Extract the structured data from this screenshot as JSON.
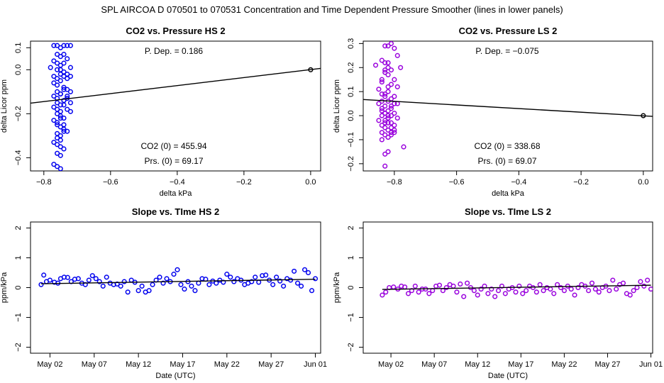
{
  "header": {
    "title": "SPL   AIRCOA D   070501 to 070531   Concentration and Time Dependent Pressure Smoother (lines in lower panels)"
  },
  "colors": {
    "hs": "#0000ee",
    "ls": "#9900dd",
    "line": "#000000"
  },
  "chart_data": [
    {
      "type": "scatter",
      "title": "CO2 vs. Pressure HS 2",
      "xlabel": "delta kPa",
      "ylabel": "delta Licor ppm",
      "xlim": [
        -0.84,
        0.03
      ],
      "ylim": [
        -0.46,
        0.13
      ],
      "xticks": [
        -0.8,
        -0.6,
        -0.4,
        -0.2,
        0.0
      ],
      "xtick_labels": [
        "−0.8",
        "−0.6",
        "−0.4",
        "−0.2",
        "0.0"
      ],
      "yticks": [
        -0.4,
        -0.2,
        0.0,
        0.1
      ],
      "ytick_labels": [
        "−0.4",
        "−0.2",
        "0.0",
        "0.1"
      ],
      "fit_line": {
        "x": [
          -0.84,
          0.03
        ],
        "y": [
          -0.152,
          0.006
        ]
      },
      "reference_point": {
        "x": 0.0,
        "y": 0.0
      },
      "annotations": [
        "P. Dep. =  0.186",
        "CO2 (0) =  455.94",
        "Prs. (0) =  69.17"
      ],
      "series": [
        {
          "name": "HS 2",
          "color": "#0000ee",
          "x": [
            -0.77,
            -0.76,
            -0.75,
            -0.74,
            -0.73,
            -0.72,
            -0.76,
            -0.75,
            -0.74,
            -0.73,
            -0.77,
            -0.76,
            -0.75,
            -0.74,
            -0.72,
            -0.78,
            -0.76,
            -0.75,
            -0.74,
            -0.73,
            -0.77,
            -0.76,
            -0.75,
            -0.74,
            -0.73,
            -0.72,
            -0.77,
            -0.76,
            -0.75,
            -0.74,
            -0.73,
            -0.76,
            -0.75,
            -0.74,
            -0.72,
            -0.77,
            -0.76,
            -0.75,
            -0.74,
            -0.73,
            -0.76,
            -0.75,
            -0.74,
            -0.73,
            -0.72,
            -0.77,
            -0.76,
            -0.75,
            -0.74,
            -0.73,
            -0.76,
            -0.75,
            -0.74,
            -0.72,
            -0.77,
            -0.76,
            -0.75,
            -0.74,
            -0.76,
            -0.75,
            -0.74,
            -0.73,
            -0.76,
            -0.75,
            -0.74,
            -0.76,
            -0.75,
            -0.77,
            -0.76,
            -0.75,
            -0.74,
            -0.76,
            -0.75,
            -0.77,
            -0.76,
            -0.75
          ],
          "y": [
            0.11,
            0.11,
            0.1,
            0.11,
            0.11,
            0.11,
            0.07,
            0.06,
            0.07,
            0.05,
            0.04,
            0.03,
            0.02,
            0.03,
            0.01,
            0.01,
            0.0,
            0.0,
            -0.01,
            -0.02,
            -0.03,
            -0.04,
            -0.02,
            -0.03,
            -0.04,
            -0.03,
            -0.06,
            -0.07,
            -0.05,
            -0.08,
            -0.09,
            -0.1,
            -0.11,
            -0.09,
            -0.1,
            -0.12,
            -0.13,
            -0.11,
            -0.14,
            -0.12,
            -0.15,
            -0.16,
            -0.14,
            -0.13,
            -0.15,
            -0.17,
            -0.18,
            -0.19,
            -0.16,
            -0.18,
            -0.2,
            -0.21,
            -0.22,
            -0.19,
            -0.23,
            -0.24,
            -0.22,
            -0.25,
            -0.25,
            -0.26,
            -0.27,
            -0.28,
            -0.29,
            -0.3,
            -0.28,
            -0.31,
            -0.32,
            -0.33,
            -0.34,
            -0.35,
            -0.36,
            -0.38,
            -0.39,
            -0.43,
            -0.44,
            -0.45
          ]
        }
      ]
    },
    {
      "type": "scatter",
      "title": "CO2 vs. Pressure LS 2",
      "xlabel": "delta kPa",
      "ylabel": "delta Licor ppm",
      "xlim": [
        -0.9,
        0.03
      ],
      "ylim": [
        -0.23,
        0.31
      ],
      "xticks": [
        -0.8,
        -0.6,
        -0.4,
        -0.2,
        0.0
      ],
      "xtick_labels": [
        "−0.8",
        "−0.6",
        "−0.4",
        "−0.2",
        "0.0"
      ],
      "yticks": [
        -0.2,
        -0.1,
        0.0,
        0.1,
        0.2,
        0.3
      ],
      "ytick_labels": [
        "−0.2",
        "−0.1",
        "0.0",
        "0.1",
        "0.2",
        "0.3"
      ],
      "fit_line": {
        "x": [
          -0.9,
          0.03
        ],
        "y": [
          0.067,
          -0.003
        ]
      },
      "reference_point": {
        "x": 0.0,
        "y": 0.0
      },
      "annotations": [
        "P. Dep. =  −0.075",
        "CO2 (0) =  338.68",
        "Prs. (0) =  69.07"
      ],
      "series": [
        {
          "name": "LS 2",
          "color": "#9900dd",
          "x": [
            -0.82,
            -0.81,
            -0.8,
            -0.83,
            -0.79,
            -0.84,
            -0.83,
            -0.82,
            -0.86,
            -0.81,
            -0.78,
            -0.83,
            -0.82,
            -0.8,
            -0.84,
            -0.81,
            -0.79,
            -0.85,
            -0.82,
            -0.83,
            -0.8,
            -0.84,
            -0.81,
            -0.82,
            -0.79,
            -0.85,
            -0.83,
            -0.8,
            -0.81,
            -0.84,
            -0.82,
            -0.83,
            -0.8,
            -0.81,
            -0.84,
            -0.82,
            -0.79,
            -0.85,
            -0.83,
            -0.81,
            -0.82,
            -0.8,
            -0.84,
            -0.83,
            -0.81,
            -0.82,
            -0.8,
            -0.84,
            -0.83,
            -0.81,
            -0.82,
            -0.8,
            -0.84,
            -0.83,
            -0.81,
            -0.82,
            -0.84,
            -0.83,
            -0.81,
            -0.82,
            -0.84,
            -0.83,
            -0.82,
            -0.84,
            -0.83,
            -0.82,
            -0.83,
            -0.82,
            -0.77,
            -0.83
          ],
          "y": [
            0.29,
            0.3,
            0.28,
            0.29,
            0.25,
            0.23,
            0.22,
            0.2,
            0.21,
            0.19,
            0.2,
            0.18,
            0.17,
            0.15,
            0.14,
            0.13,
            0.12,
            0.11,
            0.1,
            0.09,
            0.08,
            0.09,
            0.07,
            0.06,
            0.05,
            0.05,
            0.04,
            0.05,
            0.03,
            0.02,
            0.02,
            0.01,
            0.01,
            0.0,
            0.0,
            -0.01,
            -0.01,
            -0.02,
            -0.02,
            -0.03,
            -0.03,
            -0.04,
            -0.04,
            -0.05,
            -0.05,
            -0.06,
            -0.07,
            -0.07,
            -0.08,
            -0.08,
            -0.09,
            -0.06,
            -0.1,
            -0.03,
            -0.07,
            0.0,
            0.03,
            0.01,
            0.04,
            -0.01,
            0.06,
            0.08,
            0.12,
            0.15,
            0.19,
            0.22,
            -0.16,
            -0.15,
            -0.13,
            -0.21
          ]
        }
      ]
    },
    {
      "type": "scatter",
      "title": "Slope vs. TIme HS 2",
      "xlabel": "Date (UTC)",
      "ylabel": "ppm/kPa",
      "xlim": [
        -1.2,
        31.6
      ],
      "ylim": [
        -2.2,
        2.2
      ],
      "xticks": [
        1,
        6,
        11,
        16,
        21,
        26,
        31
      ],
      "xtick_labels": [
        "May 02",
        "May 07",
        "May 12",
        "May 17",
        "May 22",
        "May 27",
        "Jun 01"
      ],
      "yticks": [
        -2,
        -1,
        0,
        1,
        2
      ],
      "ytick_labels": [
        "−2",
        "−1",
        "0",
        "1",
        "2"
      ],
      "fit_line": {
        "x": [
          0,
          31
        ],
        "y": [
          0.13,
          0.28
        ]
      },
      "series": [
        {
          "name": "HS 2",
          "color": "#0000ee",
          "x": [
            0.0,
            0.3,
            0.6,
            1.0,
            1.5,
            1.9,
            2.2,
            2.6,
            3.0,
            3.4,
            3.8,
            4.2,
            4.6,
            5.0,
            5.4,
            5.8,
            6.2,
            6.6,
            7.0,
            7.4,
            7.8,
            8.2,
            8.6,
            9.0,
            9.4,
            9.8,
            10.2,
            10.6,
            11.0,
            11.4,
            11.8,
            12.2,
            12.6,
            13.0,
            13.4,
            13.8,
            14.2,
            14.6,
            15.0,
            15.4,
            15.8,
            16.2,
            16.6,
            17.0,
            17.4,
            17.8,
            18.2,
            18.6,
            19.0,
            19.4,
            19.8,
            20.2,
            20.6,
            21.0,
            21.4,
            21.8,
            22.2,
            22.6,
            23.0,
            23.4,
            23.8,
            24.2,
            24.6,
            25.0,
            25.4,
            25.8,
            26.2,
            26.6,
            27.0,
            27.4,
            27.8,
            28.2,
            28.6,
            29.0,
            29.4,
            29.8,
            30.2,
            30.6,
            31.0
          ],
          "y": [
            0.1,
            0.42,
            0.2,
            0.25,
            0.18,
            0.15,
            0.3,
            0.35,
            0.34,
            0.2,
            0.28,
            0.3,
            0.15,
            0.1,
            0.25,
            0.4,
            0.3,
            0.2,
            0.05,
            0.35,
            0.15,
            0.1,
            0.12,
            0.05,
            0.2,
            -0.15,
            0.25,
            0.18,
            -0.1,
            0.05,
            -0.15,
            -0.1,
            0.1,
            0.25,
            0.35,
            0.15,
            0.3,
            0.2,
            0.45,
            0.6,
            0.1,
            -0.05,
            0.2,
            0.05,
            -0.1,
            0.15,
            0.3,
            0.28,
            0.1,
            0.22,
            0.15,
            0.25,
            0.18,
            0.45,
            0.35,
            0.2,
            0.3,
            0.25,
            0.1,
            0.15,
            0.2,
            0.35,
            0.18,
            0.4,
            0.42,
            0.25,
            0.1,
            0.35,
            0.22,
            0.05,
            0.3,
            0.25,
            0.55,
            0.15,
            0.05,
            0.6,
            0.5,
            -0.1,
            0.3
          ]
        }
      ]
    },
    {
      "type": "scatter",
      "title": "Slope vs. TIme LS 2",
      "xlabel": "Date (UTC)",
      "ylabel": "ppm/kPa",
      "xlim": [
        -2.2,
        31.2
      ],
      "ylim": [
        -2.2,
        2.2
      ],
      "xticks": [
        1,
        6,
        11,
        16,
        21,
        26,
        31
      ],
      "xtick_labels": [
        "May 02",
        "May 07",
        "May 12",
        "May 17",
        "May 22",
        "May 27",
        "Jun 01"
      ],
      "yticks": [
        -2,
        -1,
        0,
        1,
        2
      ],
      "ytick_labels": [
        "−2",
        "−1",
        "0",
        "1",
        "2"
      ],
      "fit_line": {
        "x": [
          0,
          31
        ],
        "y": [
          -0.06,
          0.08
        ]
      },
      "series": [
        {
          "name": "LS 2",
          "color": "#9900dd",
          "x": [
            0.0,
            0.4,
            0.8,
            1.3,
            1.8,
            2.2,
            2.6,
            3.0,
            3.4,
            3.8,
            4.2,
            4.6,
            5.0,
            5.4,
            5.8,
            6.2,
            6.6,
            7.0,
            7.4,
            7.8,
            8.2,
            8.6,
            9.0,
            9.4,
            9.8,
            10.2,
            10.6,
            11.0,
            11.4,
            11.8,
            12.2,
            12.6,
            13.0,
            13.4,
            13.8,
            14.2,
            14.6,
            15.0,
            15.4,
            15.8,
            16.2,
            16.6,
            17.0,
            17.4,
            17.8,
            18.2,
            18.6,
            19.0,
            19.4,
            19.8,
            20.2,
            20.6,
            21.0,
            21.4,
            21.8,
            22.2,
            22.6,
            23.0,
            23.4,
            23.8,
            24.2,
            24.6,
            25.0,
            25.4,
            25.8,
            26.2,
            26.6,
            27.0,
            27.4,
            27.8,
            28.2,
            28.6,
            29.0,
            29.4,
            29.8,
            30.2,
            30.6,
            31.0
          ],
          "y": [
            -0.25,
            -0.15,
            0.0,
            0.02,
            -0.05,
            0.05,
            0.02,
            -0.2,
            -0.1,
            0.05,
            -0.15,
            -0.05,
            -0.05,
            -0.2,
            -0.1,
            0.05,
            0.08,
            -0.1,
            0.0,
            0.1,
            0.05,
            -0.15,
            0.12,
            -0.3,
            0.15,
            0.0,
            -0.1,
            -0.25,
            -0.05,
            0.05,
            -0.2,
            -0.05,
            -0.3,
            -0.1,
            0.05,
            -0.2,
            -0.05,
            0.0,
            -0.15,
            0.05,
            -0.2,
            -0.1,
            0.05,
            0.0,
            -0.15,
            0.1,
            -0.1,
            0.0,
            -0.05,
            -0.2,
            0.1,
            0.0,
            -0.1,
            0.05,
            -0.05,
            -0.25,
            0.0,
            0.1,
            0.05,
            -0.1,
            0.15,
            -0.05,
            -0.15,
            0.0,
            0.05,
            -0.1,
            0.25,
            -0.05,
            0.1,
            0.15,
            -0.2,
            -0.25,
            -0.1,
            0.0,
            0.2,
            0.05,
            0.25,
            -0.05
          ]
        }
      ]
    }
  ]
}
